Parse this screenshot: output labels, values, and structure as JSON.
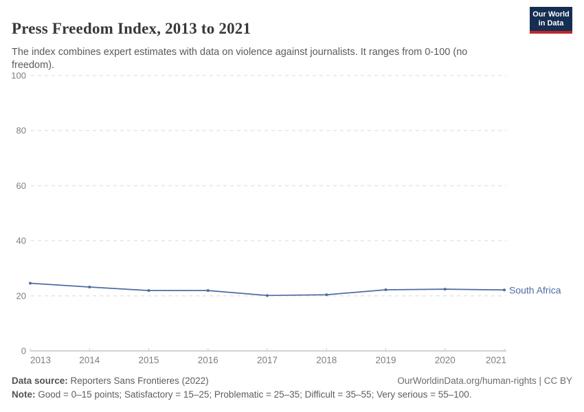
{
  "header": {
    "title": "Press Freedom Index, 2013 to 2021",
    "subtitle": "The index combines expert estimates with data on violence against journalists. It ranges from 0-100 (no freedom).",
    "logo": {
      "line1": "Our World",
      "line2": "in Data",
      "bg_color": "#152E52",
      "bar_color": "#C0262C"
    }
  },
  "chart_data": {
    "type": "line",
    "x": [
      2013,
      2014,
      2015,
      2016,
      2017,
      2018,
      2019,
      2020,
      2021
    ],
    "series": [
      {
        "name": "South Africa",
        "values": [
          24.56,
          23.19,
          21.92,
          21.92,
          20.12,
          20.39,
          22.19,
          22.41,
          22.13
        ],
        "color": "#4d6ba3"
      }
    ],
    "title": "Press Freedom Index, 2013 to 2021",
    "xlabel": "",
    "ylabel": "",
    "ylim": [
      0,
      100
    ],
    "yticks": [
      0,
      20,
      40,
      60,
      80,
      100
    ],
    "grid": true,
    "grid_style": "dashed",
    "legend_position": "end-of-line-label",
    "end_label": "South Africa",
    "axis_text_color": "#7e7e7e",
    "grid_color": "#e6e6e6",
    "axis_line_color": "#a3a3a3"
  },
  "footer": {
    "datasource_label": "Data source:",
    "datasource_value": " Reporters Sans Frontieres (2022)",
    "link_text": "OurWorldinData.org/human-rights | CC BY",
    "note_label": "Note:",
    "note_value": " Good = 0–15 points; Satisfactory = 15–25; Problematic = 25–35; Difficult = 35–55; Very serious = 55–100."
  }
}
